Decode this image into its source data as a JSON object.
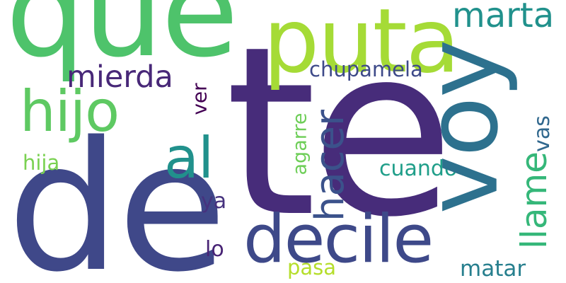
{
  "words": {
    "te": {
      "text": "te",
      "color": "#472c7a"
    },
    "de": {
      "text": "de",
      "color": "#3f4889"
    },
    "que": {
      "text": "que",
      "color": "#4ec36b"
    },
    "voy": {
      "text": "voy",
      "color": "#2d718e"
    },
    "puta": {
      "text": "puta",
      "color": "#a5db36"
    },
    "decile": {
      "text": "decile",
      "color": "#3e4989"
    },
    "hijo": {
      "text": "hijo",
      "color": "#5ec962"
    },
    "al": {
      "text": "al",
      "color": "#21918c"
    },
    "marta": {
      "text": "marta",
      "color": "#21918c"
    },
    "hacer": {
      "text": "hacer",
      "color": "#3b528b"
    },
    "llame": {
      "text": "llame",
      "color": "#35b779"
    },
    "mierda": {
      "text": "mierda",
      "color": "#482878"
    },
    "chupamela": {
      "text": "chupamela",
      "color": "#3e4a89"
    },
    "cuando": {
      "text": "cuando",
      "color": "#1f9e89"
    },
    "agarre": {
      "text": "agarre",
      "color": "#6ece58"
    },
    "ver": {
      "text": "ver",
      "color": "#440154"
    },
    "hija": {
      "text": "hija",
      "color": "#7ad151"
    },
    "vas": {
      "text": "vas",
      "color": "#31688e"
    },
    "ya": {
      "text": "ya",
      "color": "#46327e"
    },
    "lo": {
      "text": "lo",
      "color": "#482475"
    },
    "pasa": {
      "text": "pasa",
      "color": "#b5de2b"
    },
    "matar": {
      "text": "matar",
      "color": "#277f8e"
    }
  }
}
